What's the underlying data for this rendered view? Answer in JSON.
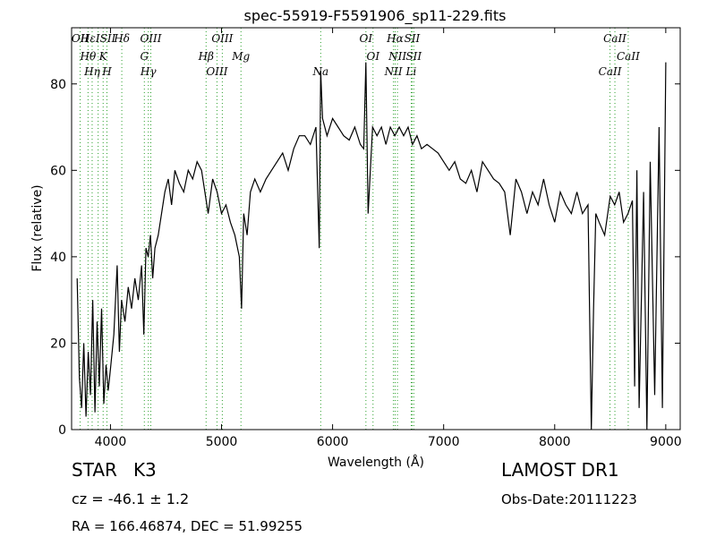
{
  "chart_data": {
    "type": "line",
    "title": "spec-55919-F5591906_sp11-229.fits",
    "xlabel": "Wavelength (Å)",
    "ylabel": "Flux (relative)",
    "xlim": [
      3650,
      9130
    ],
    "ylim": [
      0,
      93
    ],
    "xticks": [
      4000,
      5000,
      6000,
      7000,
      8000,
      9000
    ],
    "yticks": [
      0,
      20,
      40,
      60,
      80
    ],
    "grid": false,
    "series": [
      {
        "color": "#000000",
        "x": [
          3700,
          3720,
          3740,
          3760,
          3780,
          3800,
          3820,
          3840,
          3860,
          3880,
          3900,
          3920,
          3940,
          3960,
          3980,
          4000,
          4030,
          4060,
          4080,
          4100,
          4130,
          4160,
          4190,
          4220,
          4250,
          4280,
          4300,
          4320,
          4340,
          4360,
          4380,
          4400,
          4430,
          4460,
          4490,
          4520,
          4550,
          4580,
          4620,
          4660,
          4700,
          4740,
          4780,
          4820,
          4850,
          4880,
          4920,
          4960,
          5000,
          5040,
          5080,
          5120,
          5160,
          5180,
          5200,
          5230,
          5260,
          5300,
          5350,
          5400,
          5450,
          5500,
          5550,
          5600,
          5650,
          5700,
          5750,
          5800,
          5850,
          5880,
          5893,
          5910,
          5950,
          6000,
          6050,
          6100,
          6150,
          6200,
          6250,
          6280,
          6300,
          6320,
          6360,
          6400,
          6440,
          6480,
          6520,
          6560,
          6600,
          6640,
          6680,
          6720,
          6760,
          6800,
          6850,
          6900,
          6950,
          7000,
          7050,
          7100,
          7150,
          7200,
          7250,
          7300,
          7350,
          7400,
          7450,
          7500,
          7550,
          7600,
          7650,
          7700,
          7750,
          7800,
          7850,
          7900,
          7950,
          8000,
          8050,
          8100,
          8150,
          8200,
          8250,
          8300,
          8330,
          8350,
          8370,
          8400,
          8450,
          8500,
          8540,
          8580,
          8620,
          8660,
          8700,
          8720,
          8740,
          8760,
          8800,
          8830,
          8860,
          8900,
          8940,
          8970,
          9000
        ],
        "y": [
          35,
          12,
          5,
          20,
          3,
          18,
          8,
          30,
          4,
          25,
          10,
          28,
          6,
          15,
          9,
          14,
          22,
          38,
          18,
          30,
          25,
          33,
          28,
          35,
          30,
          38,
          22,
          42,
          40,
          45,
          35,
          42,
          45,
          50,
          55,
          58,
          52,
          60,
          57,
          55,
          60,
          58,
          62,
          60,
          55,
          50,
          58,
          55,
          50,
          52,
          48,
          45,
          40,
          28,
          50,
          45,
          55,
          58,
          55,
          58,
          60,
          62,
          64,
          60,
          65,
          68,
          68,
          66,
          70,
          42,
          83,
          72,
          68,
          72,
          70,
          68,
          67,
          70,
          66,
          65,
          85,
          50,
          70,
          68,
          70,
          66,
          70,
          68,
          70,
          68,
          70,
          66,
          68,
          65,
          66,
          65,
          64,
          62,
          60,
          62,
          58,
          57,
          60,
          55,
          62,
          60,
          58,
          57,
          55,
          45,
          58,
          55,
          50,
          55,
          52,
          58,
          52,
          48,
          55,
          52,
          50,
          55,
          50,
          52,
          0,
          28,
          50,
          48,
          45,
          54,
          52,
          55,
          48,
          50,
          53,
          10,
          60,
          5,
          55,
          0,
          62,
          8,
          70,
          5,
          85
        ]
      }
    ],
    "line_markers": [
      {
        "label": "OII",
        "x": 3727
      },
      {
        "label": "Hθ",
        "x": 3798
      },
      {
        "label": "Hη",
        "x": 3835
      },
      {
        "label": "HεISII",
        "x": 3889
      },
      {
        "label": "K",
        "x": 3934
      },
      {
        "label": "H",
        "x": 3968
      },
      {
        "label": "Hδ",
        "x": 4102
      },
      {
        "label": "G",
        "x": 4305
      },
      {
        "label": "Hγ",
        "x": 4341
      },
      {
        "label": "OIII",
        "x": 4363
      },
      {
        "label": "Hβ",
        "x": 4861
      },
      {
        "label": "OIII",
        "x": 4959
      },
      {
        "label": "OIII",
        "x": 5007
      },
      {
        "label": "Mg",
        "x": 5175
      },
      {
        "label": "Na",
        "x": 5893
      },
      {
        "label": "OI",
        "x": 6300
      },
      {
        "label": "OI",
        "x": 6364
      },
      {
        "label": "NII",
        "x": 6548
      },
      {
        "label": "Hα",
        "x": 6563
      },
      {
        "label": "NII",
        "x": 6584
      },
      {
        "label": "Li",
        "x": 6708
      },
      {
        "label": "SII",
        "x": 6716
      },
      {
        "label": "SII",
        "x": 6731
      },
      {
        "label": "CaII",
        "x": 8498
      },
      {
        "label": "CaII",
        "x": 8542
      },
      {
        "label": "CaII",
        "x": 8662
      }
    ]
  },
  "info": {
    "object_class": "STAR",
    "subclass": "K3",
    "release": "LAMOST DR1",
    "cz": "cz = -46.1 ± 1.2",
    "obs_date": "Obs-Date:20111223",
    "coords": "RA = 166.46874, DEC = 51.99255"
  },
  "colors": {
    "spectrum": "#000000",
    "marker_line": "#2ca02c",
    "axes": "#000000"
  }
}
